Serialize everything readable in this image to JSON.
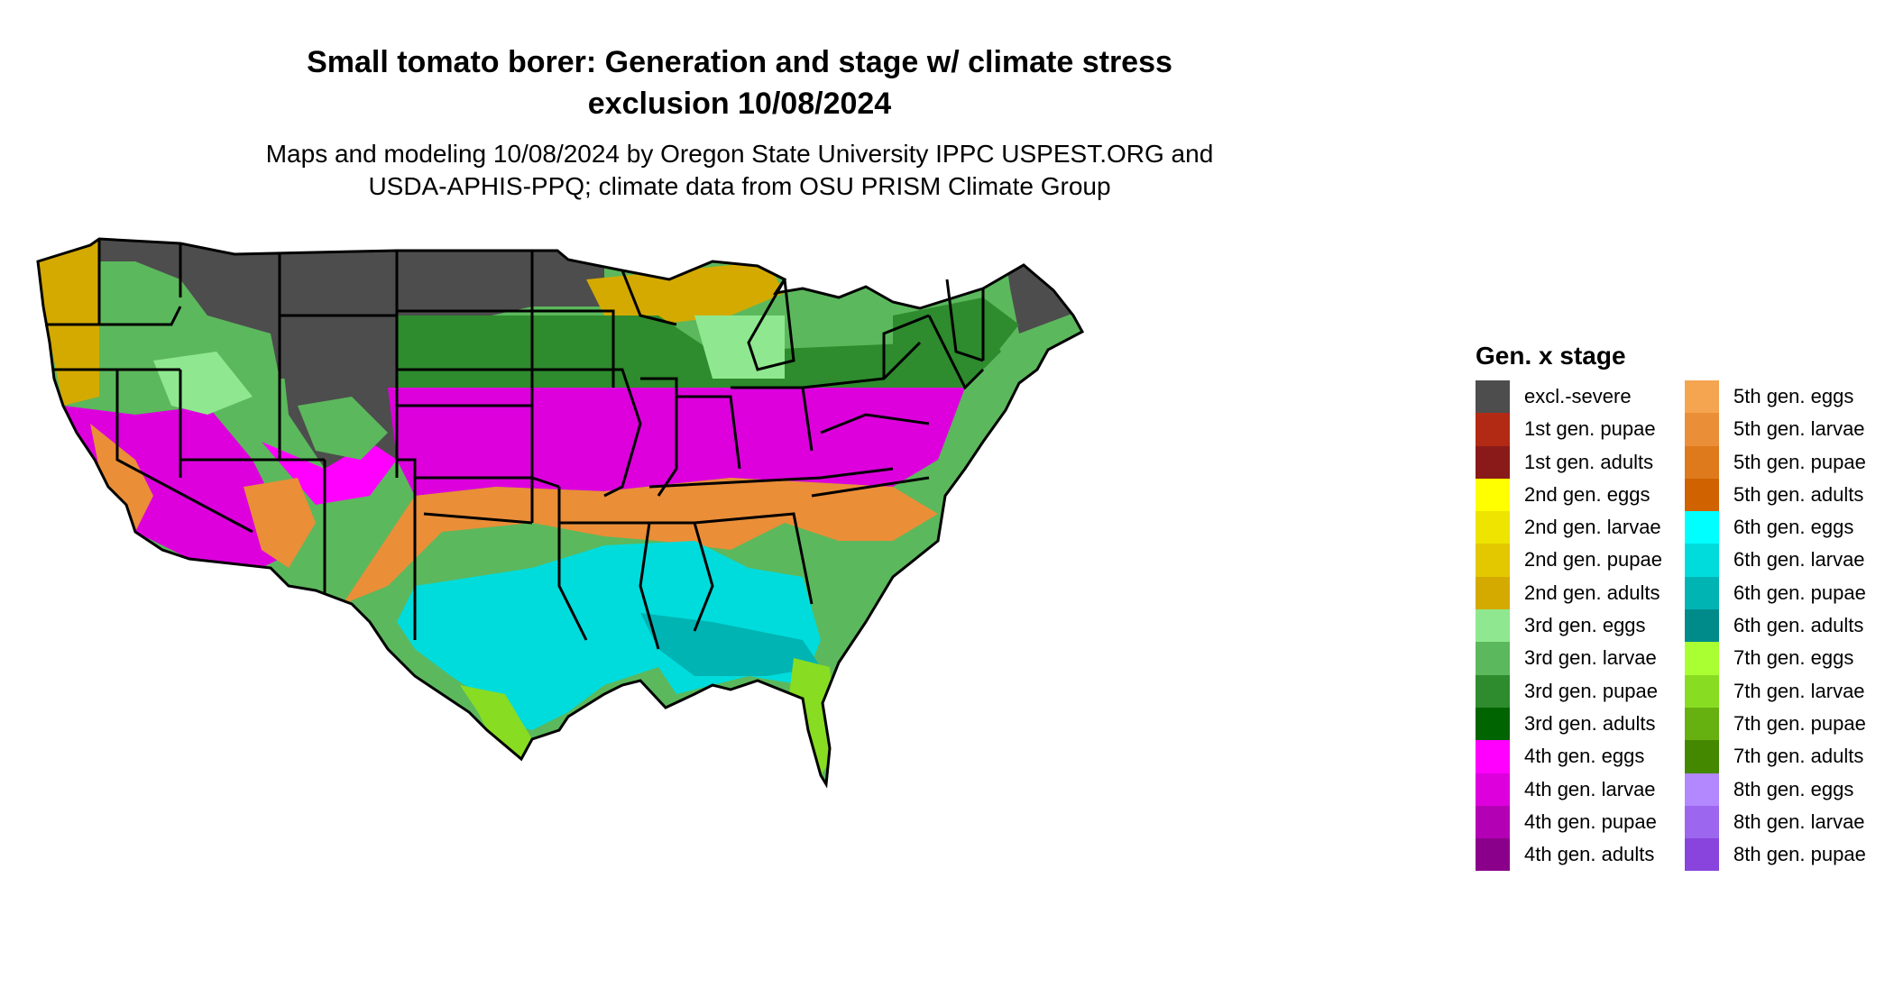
{
  "title": {
    "line1": "Small tomato borer: Generation and stage w/ climate stress",
    "line2": "exclusion 10/08/2024"
  },
  "subtitle": {
    "line1": "Maps and modeling 10/08/2024 by Oregon State University IPPC USPEST.ORG and",
    "line2": "USDA-APHIS-PPQ; climate data from OSU PRISM Climate Group"
  },
  "legend": {
    "title": "Gen. x stage",
    "column1": [
      {
        "label": "excl.-severe",
        "color": "#4d4d4d"
      },
      {
        "label": "1st gen. pupae",
        "color": "#b22a14"
      },
      {
        "label": "1st gen. adults",
        "color": "#8a1a1a"
      },
      {
        "label": "2nd gen. eggs",
        "color": "#ffff00"
      },
      {
        "label": "2nd gen. larvae",
        "color": "#eee400"
      },
      {
        "label": "2nd gen. pupae",
        "color": "#e3c800"
      },
      {
        "label": "2nd gen. adults",
        "color": "#d4aa00"
      },
      {
        "label": "3rd gen. eggs",
        "color": "#8fe88f"
      },
      {
        "label": "3rd gen. larvae",
        "color": "#5cb85c"
      },
      {
        "label": "3rd gen. pupae",
        "color": "#2e8b2e"
      },
      {
        "label": "3rd gen. adults",
        "color": "#006400"
      },
      {
        "label": "4th gen. eggs",
        "color": "#ff00ff"
      },
      {
        "label": "4th gen. larvae",
        "color": "#dd00dd"
      },
      {
        "label": "4th gen. pupae",
        "color": "#b400b4"
      },
      {
        "label": "4th gen. adults",
        "color": "#8b008b"
      }
    ],
    "column2": [
      {
        "label": "5th gen. eggs",
        "color": "#f5a54f"
      },
      {
        "label": "5th gen. larvae",
        "color": "#ea8e38"
      },
      {
        "label": "5th gen. pupae",
        "color": "#de7a1c"
      },
      {
        "label": "5th gen. adults",
        "color": "#d06200"
      },
      {
        "label": "6th gen. eggs",
        "color": "#00ffff"
      },
      {
        "label": "6th gen. larvae",
        "color": "#00dcdc"
      },
      {
        "label": "6th gen. pupae",
        "color": "#00b4b4"
      },
      {
        "label": "6th gen. adults",
        "color": "#008b8b"
      },
      {
        "label": "7th gen. eggs",
        "color": "#aaff33"
      },
      {
        "label": "7th gen. larvae",
        "color": "#88dd22"
      },
      {
        "label": "7th gen. pupae",
        "color": "#66b010"
      },
      {
        "label": "7th gen. adults",
        "color": "#448800"
      },
      {
        "label": "8th gen. eggs",
        "color": "#b388ff"
      },
      {
        "label": "8th gen. larvae",
        "color": "#9c66ee"
      },
      {
        "label": "8th gen. pupae",
        "color": "#8844dd"
      }
    ]
  }
}
